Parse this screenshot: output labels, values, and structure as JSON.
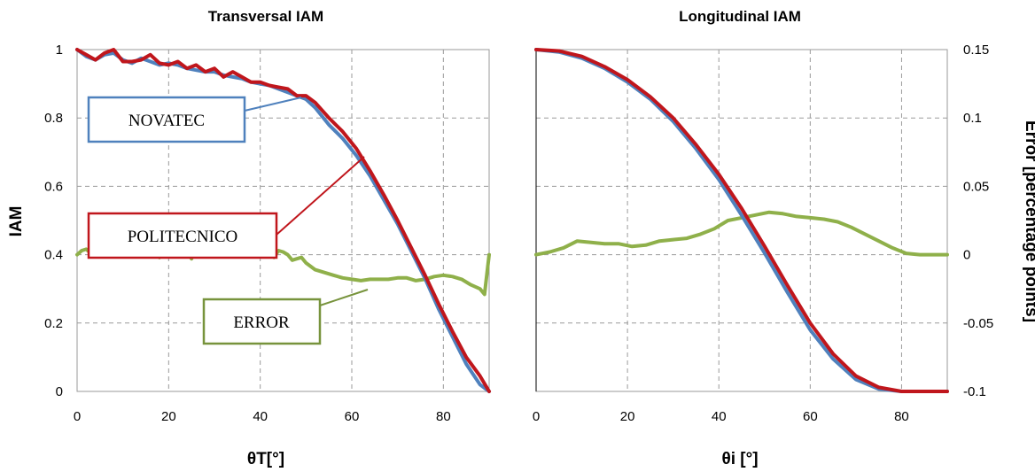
{
  "chart_data": [
    {
      "type": "line",
      "title": "Transversal IAM",
      "ylabel": "IAM",
      "xlabel": "θT[°]",
      "xlim": [
        0,
        90
      ],
      "ylim": [
        0,
        1
      ],
      "x_ticks": [
        "0",
        "20",
        "40",
        "60",
        "80"
      ],
      "y_ticks": [
        "0",
        "0.2",
        "0.4",
        "0.6",
        "0.8",
        "1"
      ],
      "grid": true,
      "series": [
        {
          "name": "NOVATEC",
          "color": "#4f81bd",
          "x": [
            0,
            2,
            4,
            6,
            8,
            10,
            12,
            14,
            16,
            18,
            20,
            22,
            24,
            26,
            28,
            30,
            32,
            34,
            36,
            38,
            40,
            42,
            44,
            46,
            48,
            50,
            52,
            55,
            58,
            61,
            64,
            67,
            70,
            73,
            76,
            79,
            82,
            85,
            88,
            90
          ],
          "y": [
            1.0,
            0.98,
            0.97,
            0.985,
            0.99,
            0.97,
            0.96,
            0.975,
            0.965,
            0.955,
            0.96,
            0.955,
            0.945,
            0.94,
            0.935,
            0.935,
            0.925,
            0.92,
            0.915,
            0.905,
            0.9,
            0.895,
            0.885,
            0.875,
            0.865,
            0.855,
            0.83,
            0.78,
            0.74,
            0.69,
            0.63,
            0.56,
            0.49,
            0.41,
            0.33,
            0.24,
            0.16,
            0.08,
            0.02,
            0.0
          ]
        },
        {
          "name": "POLITECNICO",
          "color": "#c0161c",
          "x": [
            0,
            2,
            4,
            6,
            8,
            10,
            12,
            14,
            16,
            18,
            20,
            22,
            24,
            26,
            28,
            30,
            32,
            34,
            36,
            38,
            40,
            42,
            44,
            46,
            48,
            50,
            52,
            55,
            58,
            61,
            64,
            67,
            70,
            73,
            76,
            79,
            82,
            85,
            88,
            90
          ],
          "y": [
            1.0,
            0.985,
            0.97,
            0.99,
            1.0,
            0.965,
            0.965,
            0.97,
            0.985,
            0.96,
            0.955,
            0.965,
            0.945,
            0.955,
            0.935,
            0.945,
            0.92,
            0.935,
            0.92,
            0.905,
            0.905,
            0.895,
            0.89,
            0.885,
            0.865,
            0.865,
            0.845,
            0.8,
            0.76,
            0.71,
            0.645,
            0.575,
            0.5,
            0.42,
            0.34,
            0.255,
            0.175,
            0.1,
            0.045,
            0.0
          ]
        },
        {
          "name": "ERROR",
          "color": "#8fb04a",
          "axis": "right",
          "x": [
            0,
            1,
            2,
            3,
            4,
            5,
            6,
            7,
            8,
            9,
            10,
            11,
            12,
            13,
            14,
            15,
            16,
            17,
            18,
            19,
            20,
            21,
            22,
            23,
            24,
            25,
            26,
            27,
            28,
            29,
            30,
            31,
            32,
            33,
            34,
            35,
            36,
            37,
            38,
            39,
            40,
            41,
            42,
            43,
            44,
            45,
            46,
            47,
            48,
            49,
            50,
            52,
            54,
            56,
            58,
            60,
            62,
            64,
            66,
            68,
            70,
            72,
            74,
            76,
            78,
            80,
            82,
            84,
            86,
            88,
            89,
            90
          ],
          "y": [
            0.0,
            0.003,
            0.004,
            0.001,
            0.003,
            0.003,
            0.004,
            0.002,
            0.004,
            -0.001,
            0.0,
            0.005,
            0.003,
            0.006,
            0.001,
            0.006,
            0.007,
            0.001,
            -0.002,
            0.003,
            0.005,
            0.002,
            0.007,
            0.006,
            0.002,
            -0.003,
            0.006,
            0.004,
            0.0,
            0.008,
            0.0,
            0.005,
            0.002,
            0.006,
            -0.001,
            0.004,
            0.006,
            0.003,
            0.004,
            0.002,
            0.004,
            0.002,
            0.0,
            -0.002,
            0.003,
            0.002,
            0.0,
            -0.004,
            -0.003,
            -0.002,
            -0.006,
            -0.011,
            -0.013,
            -0.015,
            -0.017,
            -0.018,
            -0.019,
            -0.018,
            -0.018,
            -0.018,
            -0.017,
            -0.017,
            -0.019,
            -0.018,
            -0.016,
            -0.015,
            -0.016,
            -0.018,
            -0.022,
            -0.025,
            -0.029,
            0.0
          ]
        }
      ],
      "callouts": [
        "NOVATEC",
        "POLITECNICO",
        "ERROR"
      ]
    },
    {
      "type": "line",
      "title": "Longitudinal IAM",
      "xlabel": "θi [°]",
      "y2label": "Error [percentage points]",
      "xlim": [
        0,
        90
      ],
      "ylim": [
        0,
        1
      ],
      "y2lim": [
        -0.1,
        0.15
      ],
      "x_ticks": [
        "0",
        "20",
        "40",
        "60",
        "80"
      ],
      "y2_ticks": [
        "-0.1",
        "-0.05",
        "0",
        "0.05",
        "0.1",
        "0.15"
      ],
      "grid": true,
      "series": [
        {
          "name": "NOVATEC",
          "color": "#4f81bd",
          "x": [
            0,
            5,
            10,
            15,
            20,
            25,
            30,
            35,
            40,
            45,
            50,
            55,
            60,
            65,
            70,
            75,
            80,
            85,
            90
          ],
          "y": [
            1.0,
            0.993,
            0.975,
            0.945,
            0.905,
            0.855,
            0.79,
            0.71,
            0.62,
            0.515,
            0.405,
            0.29,
            0.18,
            0.095,
            0.035,
            0.007,
            0.0,
            0.0,
            0.0
          ]
        },
        {
          "name": "POLITECNICO",
          "color": "#c0161c",
          "x": [
            0,
            5,
            10,
            15,
            20,
            25,
            30,
            35,
            40,
            45,
            50,
            55,
            60,
            65,
            70,
            75,
            80,
            85,
            90
          ],
          "y": [
            1.0,
            0.996,
            0.98,
            0.95,
            0.912,
            0.862,
            0.8,
            0.722,
            0.635,
            0.535,
            0.425,
            0.31,
            0.2,
            0.11,
            0.045,
            0.012,
            0.0,
            0.0,
            0.0
          ]
        },
        {
          "name": "ERROR",
          "color": "#8fb04a",
          "axis": "right",
          "x": [
            0,
            3,
            6,
            9,
            12,
            15,
            18,
            21,
            24,
            27,
            30,
            33,
            36,
            39,
            42,
            45,
            48,
            51,
            54,
            57,
            60,
            63,
            66,
            69,
            72,
            75,
            78,
            81,
            84,
            87,
            90
          ],
          "y": [
            0.0,
            0.002,
            0.005,
            0.01,
            0.009,
            0.008,
            0.008,
            0.006,
            0.007,
            0.01,
            0.011,
            0.012,
            0.015,
            0.019,
            0.025,
            0.027,
            0.029,
            0.031,
            0.03,
            0.028,
            0.027,
            0.026,
            0.024,
            0.02,
            0.015,
            0.01,
            0.005,
            0.001,
            0.0,
            0.0,
            0.0
          ]
        }
      ]
    }
  ]
}
